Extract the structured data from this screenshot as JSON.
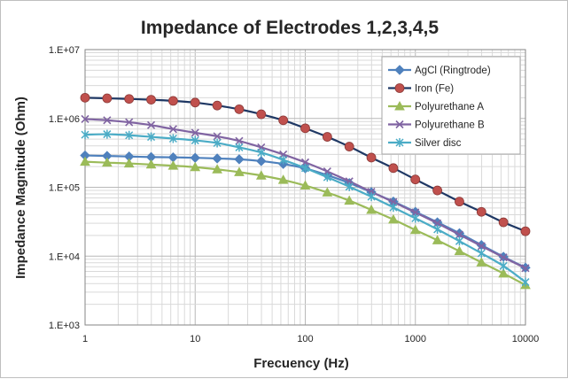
{
  "chart_data": {
    "type": "line",
    "title": "Impedance of Electrodes 1,2,3,4,5",
    "xlabel": "Frecuency  (Hz)",
    "ylabel": "Impedance  Magnitude (Ohm)",
    "x_scale": "log",
    "y_scale": "log",
    "xlim": [
      1,
      10000
    ],
    "ylim": [
      1000,
      10000000
    ],
    "x_tick_labels": [
      "1",
      "10",
      "100",
      "1000",
      "10000"
    ],
    "y_tick_labels": [
      "1.E+03",
      "1.E+04",
      "1.E+05",
      "1.E+06",
      "1.E+07"
    ],
    "grid": true,
    "legend_position": "top-right",
    "x": [
      1,
      1.585,
      2.512,
      3.981,
      6.31,
      10,
      15.85,
      25.12,
      39.81,
      63.1,
      100,
      158.5,
      251.2,
      398.1,
      631,
      1000,
      1585,
      2512,
      3981,
      6310,
      10000
    ],
    "series": [
      {
        "name": "AgCl (Ringtrode)",
        "color": "#4f81bd",
        "marker": "diamond",
        "values": [
          290000,
          285000,
          280000,
          275000,
          272000,
          268000,
          262000,
          255000,
          240000,
          218000,
          188000,
          150000,
          115000,
          85000,
          62000,
          44000,
          31000,
          21500,
          14500,
          9800,
          6800
        ]
      },
      {
        "name": "Iron (Fe)",
        "color": "#c0504d",
        "line_color": "#1f3864",
        "marker": "circle",
        "values": [
          2000000,
          1960000,
          1920000,
          1870000,
          1800000,
          1700000,
          1540000,
          1360000,
          1150000,
          940000,
          720000,
          540000,
          390000,
          270000,
          190000,
          130000,
          90000,
          62000,
          44000,
          31000,
          23000
        ]
      },
      {
        "name": "Polyurethane A",
        "color": "#9bbb59",
        "marker": "triangle",
        "values": [
          235000,
          228000,
          222000,
          214000,
          206000,
          196000,
          182000,
          166000,
          148000,
          128000,
          106000,
          84000,
          64000,
          47000,
          34000,
          24000,
          17000,
          11800,
          8100,
          5600,
          3800
        ]
      },
      {
        "name": "Polyurethane B",
        "color": "#8064a2",
        "marker": "x",
        "values": [
          980000,
          940000,
          880000,
          800000,
          700000,
          620000,
          550000,
          470000,
          380000,
          300000,
          230000,
          170000,
          122000,
          86000,
          61000,
          43000,
          30000,
          20500,
          14000,
          9600,
          6700
        ]
      },
      {
        "name": "Silver disc",
        "color": "#4bacc6",
        "marker": "star",
        "values": [
          580000,
          590000,
          570000,
          540000,
          510000,
          480000,
          440000,
          380000,
          320000,
          250000,
          190000,
          140000,
          102000,
          73000,
          51000,
          35500,
          24500,
          16500,
          11000,
          7200,
          4200
        ]
      }
    ]
  }
}
